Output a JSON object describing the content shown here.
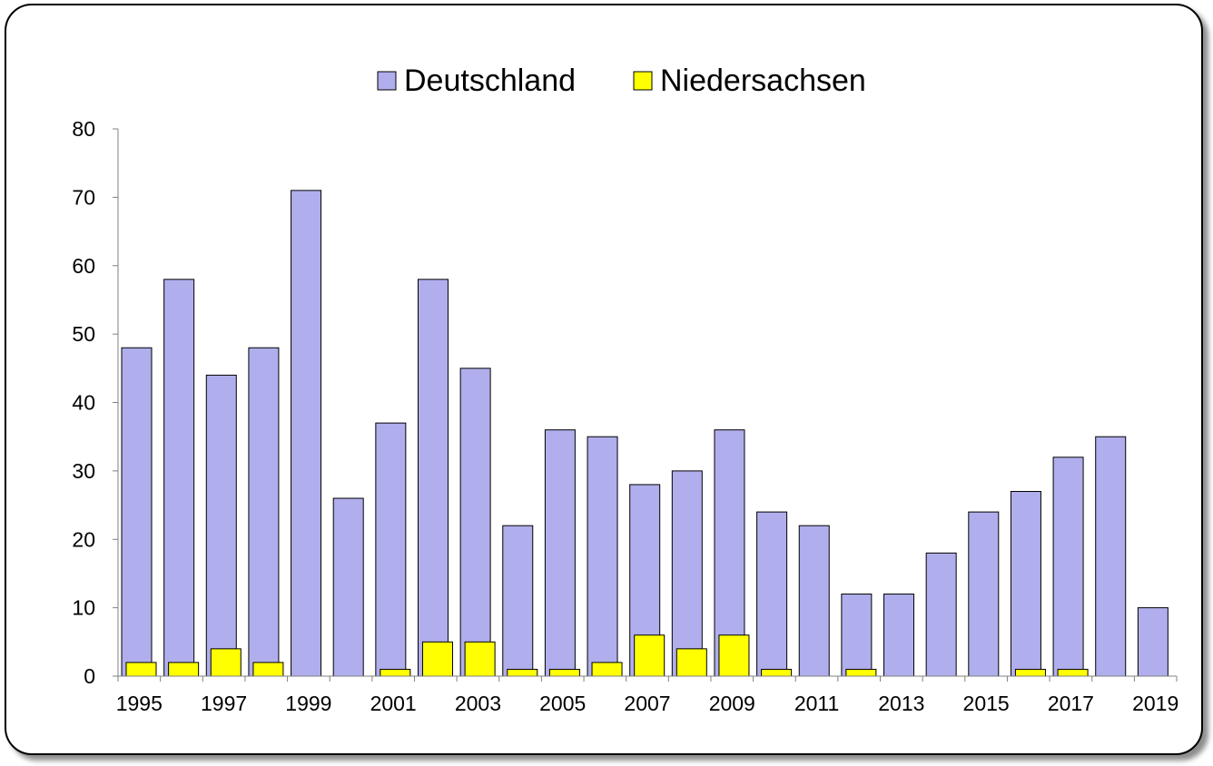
{
  "chart_data": {
    "type": "bar",
    "title": "",
    "xlabel": "",
    "ylabel": "",
    "ylim": [
      0,
      80
    ],
    "yticks": [
      0,
      10,
      20,
      30,
      40,
      50,
      60,
      70,
      80
    ],
    "categories": [
      "1995",
      "1996",
      "1997",
      "1998",
      "1999",
      "2000",
      "2001",
      "2002",
      "2003",
      "2004",
      "2005",
      "2006",
      "2007",
      "2008",
      "2009",
      "2010",
      "2011",
      "2012",
      "2013",
      "2014",
      "2015",
      "2016",
      "2017",
      "2018",
      "2019"
    ],
    "xtick_labels": [
      "1995",
      "",
      "1997",
      "",
      "1999",
      "",
      "2001",
      "",
      "2003",
      "",
      "2005",
      "",
      "2007",
      "",
      "2009",
      "",
      "2011",
      "",
      "2013",
      "",
      "2015",
      "",
      "2017",
      "",
      "2019"
    ],
    "series": [
      {
        "name": "Deutschland",
        "color": "#b0aeec",
        "values": [
          48,
          58,
          44,
          48,
          71,
          26,
          37,
          58,
          45,
          22,
          36,
          35,
          28,
          30,
          36,
          24,
          22,
          12,
          12,
          18,
          24,
          27,
          32,
          35,
          10
        ]
      },
      {
        "name": "Niedersachsen",
        "color": "#ffff00",
        "values": [
          2,
          2,
          4,
          2,
          0,
          0,
          1,
          5,
          5,
          1,
          1,
          2,
          6,
          4,
          6,
          1,
          0,
          1,
          0,
          0,
          0,
          1,
          1,
          0,
          0
        ]
      }
    ],
    "legend_position": "top-center",
    "grid": false,
    "overlap": true
  }
}
